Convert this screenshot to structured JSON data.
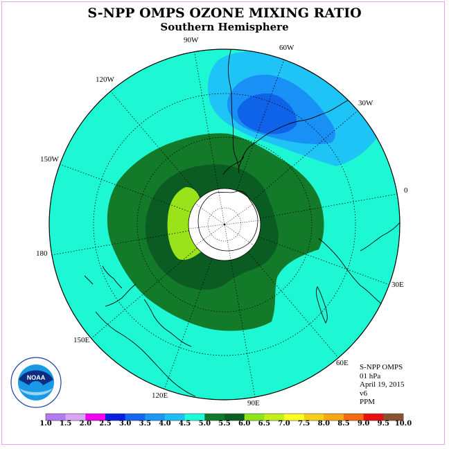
{
  "title": "S-NPP OMPS OZONE MIXING RATIO",
  "subtitle": "Southern Hemisphere",
  "longitude_labels": [
    "90W",
    "60W",
    "30W",
    "120W",
    "150W",
    "0",
    "180",
    "30E",
    "150E",
    "60E",
    "120E",
    "90E"
  ],
  "info": {
    "instrument": "S-NPP OMPS",
    "level": "01 hPa",
    "date": "April 19, 2015",
    "version": "v6",
    "units": "PPM"
  },
  "logo_text": "NOAA",
  "colorbar": {
    "ticks": [
      "1.0",
      "1.5",
      "2.0",
      "2.5",
      "3.0",
      "3.5",
      "4.0",
      "4.5",
      "5.0",
      "5.5",
      "6.0",
      "6.5",
      "7.0",
      "7.5",
      "8.0",
      "8.5",
      "9.0",
      "9.5",
      "10.0"
    ],
    "colors": [
      "#b27cf0",
      "#d9a6f5",
      "#f000f0",
      "#0a1ee0",
      "#1466f0",
      "#1a96f5",
      "#1ebef5",
      "#1affd8",
      "#117a2a",
      "#0a5e22",
      "#90e41a",
      "#c3f018",
      "#ffff22",
      "#f5d018",
      "#f5a814",
      "#f56a10",
      "#e81010",
      "#8a5030"
    ]
  },
  "map_colors": {
    "background": "#1ef7d4",
    "contour_5_0": "#137a2a",
    "contour_5_5": "#0a5c22",
    "contour_6_0": "#9ae21a",
    "contour_4_0": "#1ec4f5",
    "contour_3_5": "#1890f5",
    "contour_3_0": "#0f63e8"
  }
}
